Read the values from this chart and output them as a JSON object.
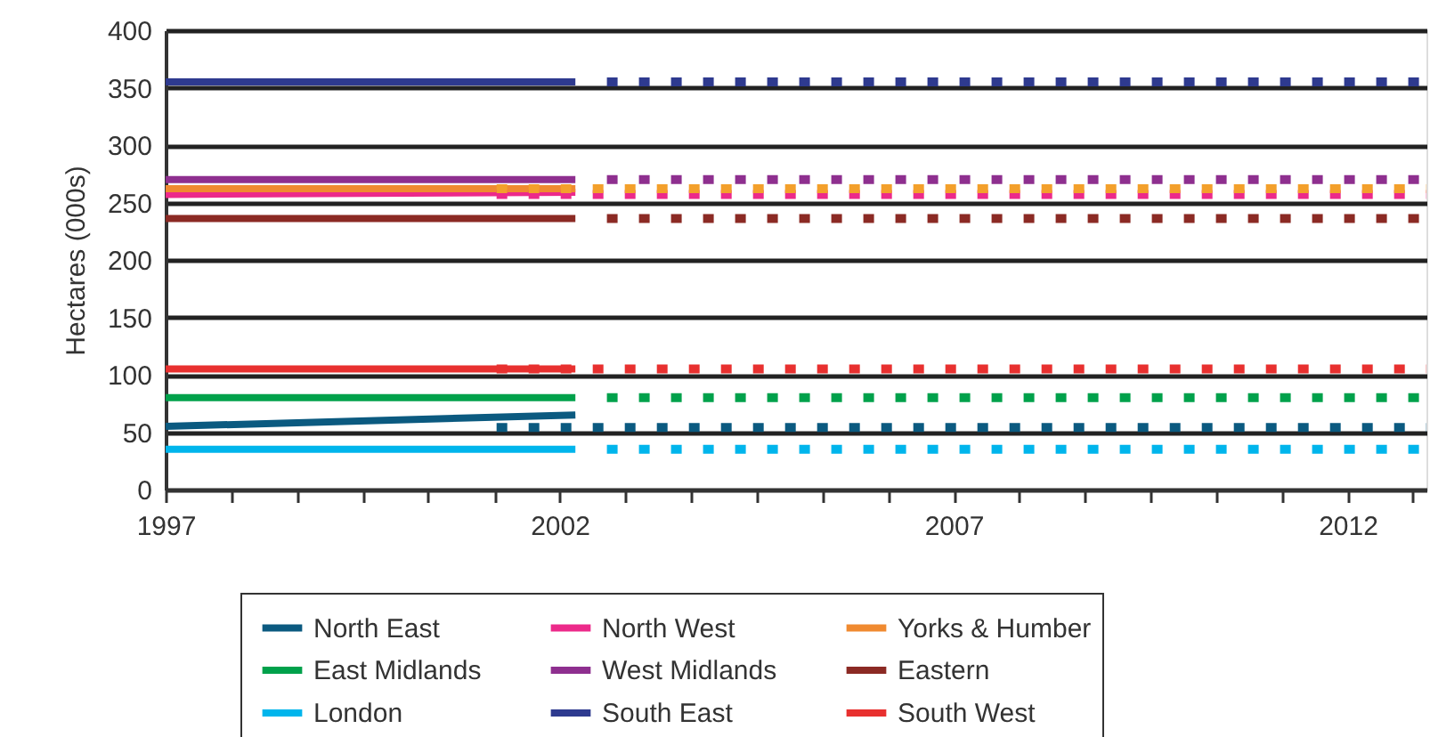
{
  "chart_data": {
    "type": "line",
    "ylabel": "Hectares (000s)",
    "xlim": [
      1997,
      2013
    ],
    "ylim": [
      0,
      400
    ],
    "xticks": [
      1997,
      {
        "value": 1997.83,
        "label": null
      },
      {
        "value": 1998.67,
        "label": null
      },
      {
        "value": 1999.5,
        "label": null
      },
      {
        "value": 2000.33,
        "label": null
      },
      {
        "value": 2001.17,
        "label": null
      },
      2002,
      {
        "value": 2002.83,
        "label": null
      },
      {
        "value": 2003.67,
        "label": null
      },
      {
        "value": 2004.5,
        "label": null
      },
      {
        "value": 2005.33,
        "label": null
      },
      {
        "value": 2006.17,
        "label": null
      },
      2007,
      {
        "value": 2007.83,
        "label": null
      },
      {
        "value": 2008.67,
        "label": null
      },
      {
        "value": 2009.5,
        "label": null
      },
      {
        "value": 2010.33,
        "label": null
      },
      {
        "value": 2011.17,
        "label": null
      },
      2012,
      {
        "value": 2012.83,
        "label": null
      }
    ],
    "yticks": [
      0,
      50,
      100,
      150,
      200,
      250,
      300,
      350,
      400
    ],
    "grid": "y",
    "legend": "bottom",
    "marker": "none",
    "series": [
      {
        "name": "North East",
        "color": "#0b5a80",
        "line_style": "solid",
        "x": [
          1997,
          2002.2
        ],
        "values": [
          55,
          65
        ]
      },
      {
        "name": "North West",
        "color": "#ec2a8a",
        "line_style": "solid",
        "x": [
          1997,
          2002.2
        ],
        "values": [
          257,
          259
        ]
      },
      {
        "name": "Yorks & Humber",
        "color": "#f08a30",
        "line_style": "solid",
        "x": [
          1997,
          2002.2
        ],
        "values": [
          262,
          262
        ]
      },
      {
        "name": "East Midlands",
        "color": "#00a14b",
        "line_style": "solid",
        "x": [
          1997,
          2002.2
        ],
        "values": [
          80,
          80
        ]
      },
      {
        "name": "West Midlands",
        "color": "#8e2f8f",
        "line_style": "solid",
        "x": [
          1997,
          2002.2
        ],
        "values": [
          270,
          270
        ]
      },
      {
        "name": "Eastern",
        "color": "#8b2a24",
        "line_style": "solid",
        "x": [
          1997,
          2002.2
        ],
        "values": [
          236,
          236
        ]
      },
      {
        "name": "London",
        "color": "#00b5ec",
        "line_style": "solid",
        "x": [
          1997,
          2002.2
        ],
        "values": [
          35,
          35
        ]
      },
      {
        "name": "South East",
        "color": "#2e3a8f",
        "line_style": "solid",
        "x": [
          1997,
          2002.2
        ],
        "values": [
          355,
          355
        ]
      },
      {
        "name": "South West",
        "color": "#e8302f",
        "line_style": "solid",
        "x": [
          1997,
          2002.2
        ],
        "values": [
          105,
          105
        ]
      },
      {
        "color": "#0b5a80",
        "line_style": "dotted",
        "x": [
          2001.2,
          2013
        ],
        "values": [
          54,
          54
        ]
      },
      {
        "color": "#ec2a8a",
        "line_style": "dotted",
        "x": [
          2001.2,
          2013
        ],
        "values": [
          257,
          257
        ]
      },
      {
        "color": "#f3a02b",
        "line_style": "dotted",
        "x": [
          2001.2,
          2013
        ],
        "values": [
          262,
          262
        ]
      },
      {
        "color": "#00a14b",
        "line_style": "dotted",
        "x": [
          2002.6,
          2013
        ],
        "values": [
          80,
          80
        ]
      },
      {
        "color": "#8e2f8f",
        "line_style": "dotted",
        "x": [
          2002.6,
          2013
        ],
        "values": [
          270,
          270
        ]
      },
      {
        "color": "#8b2a24",
        "line_style": "dotted",
        "x": [
          2002.6,
          2013
        ],
        "values": [
          236,
          236
        ]
      },
      {
        "color": "#00b5ec",
        "line_style": "dotted",
        "x": [
          2002.6,
          2013
        ],
        "values": [
          35,
          35
        ]
      },
      {
        "color": "#2e3a8f",
        "line_style": "dotted",
        "x": [
          2002.6,
          2013
        ],
        "values": [
          355,
          355
        ]
      },
      {
        "color": "#e8302f",
        "line_style": "dotted",
        "x": [
          2001.2,
          2013
        ],
        "values": [
          105,
          105
        ]
      }
    ]
  }
}
